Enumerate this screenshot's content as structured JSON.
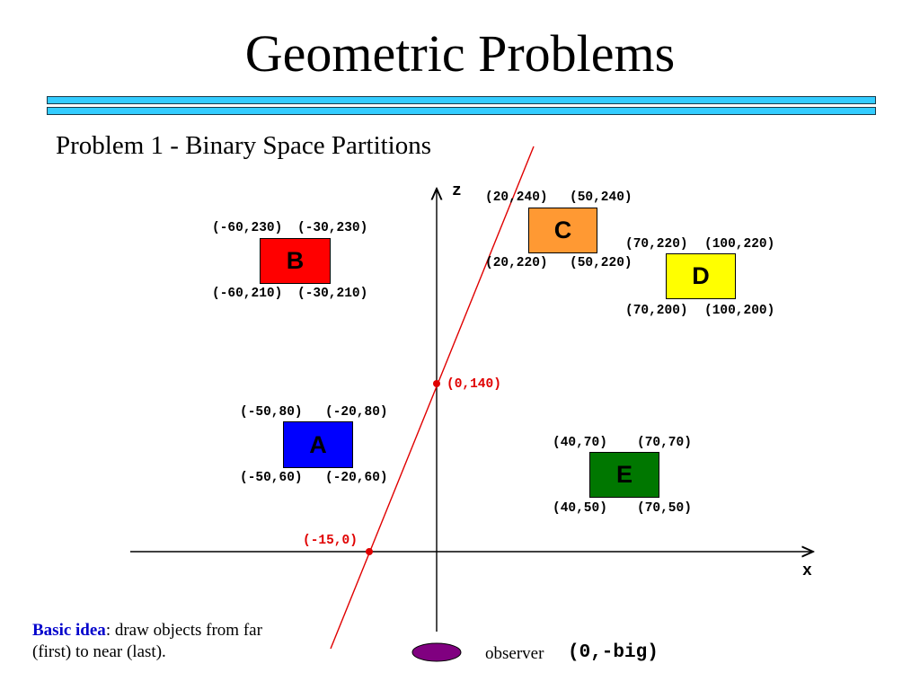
{
  "slide": {
    "title": "Geometric Problems",
    "subtitle": "Problem 1 - Binary Space Partitions"
  },
  "axes": {
    "x_label": "x",
    "z_label": "z"
  },
  "objects": {
    "A": {
      "label": "A",
      "color": "#0000ff",
      "top_left": "(-50,80)",
      "top_right": "(-20,80)",
      "bottom_left": "(-50,60)",
      "bottom_right": "(-20,60)"
    },
    "B": {
      "label": "B",
      "color": "#ff0000",
      "top_left": "(-60,230)",
      "top_right": "(-30,230)",
      "bottom_left": "(-60,210)",
      "bottom_right": "(-30,210)"
    },
    "C": {
      "label": "C",
      "color": "#ff9933",
      "top_left": "(20,240)",
      "top_right": "(50,240)",
      "bottom_left": "(20,220)",
      "bottom_right": "(50,220)"
    },
    "D": {
      "label": "D",
      "color": "#ffff00",
      "top_left": "(70,220)",
      "top_right": "(100,220)",
      "bottom_left": "(70,200)",
      "bottom_right": "(100,200)"
    },
    "E": {
      "label": "E",
      "color": "#007700",
      "top_left": "(40,70)",
      "top_right": "(70,70)",
      "bottom_left": "(40,50)",
      "bottom_right": "(70,50)"
    }
  },
  "partition_line": {
    "color": "#e00000",
    "point_upper": "(0,140)",
    "point_lower": "(-15,0)"
  },
  "note": {
    "keyword": "Basic idea",
    "text": ": draw objects from far (first) to near (last)."
  },
  "observer": {
    "label": "observer",
    "coords": "(0,-big)",
    "color": "#800080"
  }
}
